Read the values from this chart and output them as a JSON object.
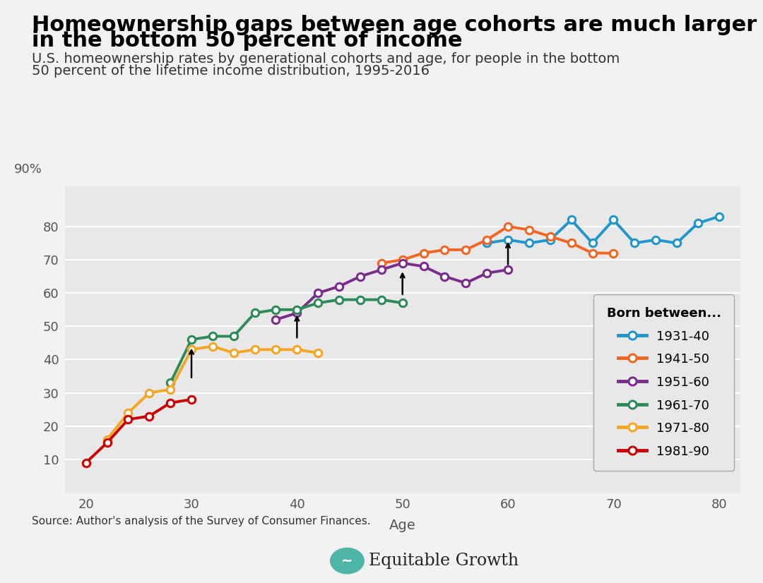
{
  "title_line1": "Homeownership gaps between age cohorts are much larger for those",
  "title_line2": "in the bottom 50 percent of income",
  "subtitle_line1": "U.S. homeownership rates by generational cohorts and age, for people in the bottom",
  "subtitle_line2": "50 percent of the lifetime income distribution, 1995-2016",
  "xlabel": "Age",
  "source_text": "Source: Author's analysis of the Survey of Consumer Finances.",
  "bg_color": "#f0f0f0",
  "plot_bg_color": "#e8e8e8",
  "series": [
    {
      "label": "1931-40",
      "color": "#2196c9",
      "ages": [
        58,
        60,
        62,
        64,
        66,
        68,
        70,
        72,
        74,
        76,
        78,
        80
      ],
      "values": [
        75,
        76,
        75,
        76,
        82,
        75,
        82,
        75,
        76,
        75,
        81,
        83
      ]
    },
    {
      "label": "1941-50",
      "color": "#f26522",
      "ages": [
        48,
        50,
        52,
        54,
        56,
        58,
        60,
        62,
        64,
        66,
        68,
        70
      ],
      "values": [
        69,
        70,
        72,
        73,
        73,
        76,
        80,
        79,
        77,
        75,
        72,
        72
      ]
    },
    {
      "label": "1951-60",
      "color": "#7b2d8b",
      "ages": [
        38,
        40,
        42,
        44,
        46,
        48,
        50,
        52,
        54,
        56,
        58,
        60
      ],
      "values": [
        52,
        54,
        60,
        62,
        65,
        67,
        69,
        68,
        65,
        63,
        66,
        67
      ]
    },
    {
      "label": "1961-70",
      "color": "#2e8b57",
      "ages": [
        28,
        30,
        32,
        34,
        36,
        38,
        40,
        42,
        44,
        46,
        48,
        50
      ],
      "values": [
        33,
        46,
        47,
        47,
        54,
        55,
        55,
        57,
        58,
        58,
        58,
        57
      ]
    },
    {
      "label": "1971-80",
      "color": "#f5a623",
      "ages": [
        22,
        24,
        26,
        28,
        30,
        32,
        34,
        36,
        38,
        40,
        42
      ],
      "values": [
        16,
        24,
        30,
        31,
        43,
        44,
        42,
        43,
        43,
        43,
        42
      ]
    },
    {
      "label": "1981-90",
      "color": "#cc0000",
      "ages": [
        20,
        22,
        24,
        26,
        28,
        30
      ],
      "values": [
        9,
        15,
        22,
        23,
        27,
        28
      ]
    }
  ],
  "arrows": [
    {
      "x": 30,
      "y_tip": 44,
      "y_tail": 34
    },
    {
      "x": 40,
      "y_tip": 54,
      "y_tail": 46
    },
    {
      "x": 50,
      "y_tip": 67,
      "y_tail": 59
    },
    {
      "x": 60,
      "y_tip": 76,
      "y_tail": 68
    }
  ],
  "ylim": [
    0,
    92
  ],
  "xlim": [
    18,
    82
  ],
  "yticks": [
    10,
    20,
    30,
    40,
    50,
    60,
    70,
    80
  ],
  "xticks": [
    20,
    30,
    40,
    50,
    60,
    70,
    80
  ],
  "legend_title": "Born between...",
  "grid_color": "#ffffff",
  "tick_color": "#555555",
  "legend_fontsize": 13,
  "title_fontsize": 22,
  "subtitle_fontsize": 14,
  "axis_fontsize": 13
}
